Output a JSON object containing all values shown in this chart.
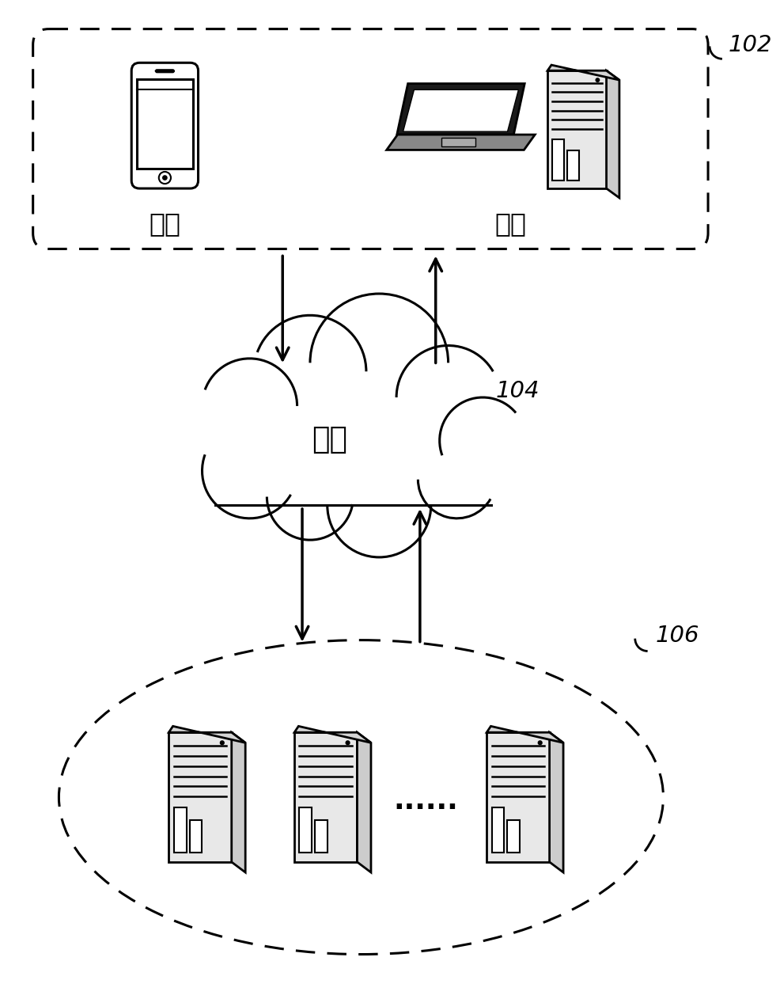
{
  "bg_color": "#ffffff",
  "text_color": "#000000",
  "label_102": "102",
  "label_104": "104",
  "label_106": "106",
  "label_phone": "手机",
  "label_computer": "电脑",
  "label_network": "网络",
  "label_dots": "......",
  "fig_width": 9.87,
  "fig_height": 12.62,
  "dpi": 100
}
